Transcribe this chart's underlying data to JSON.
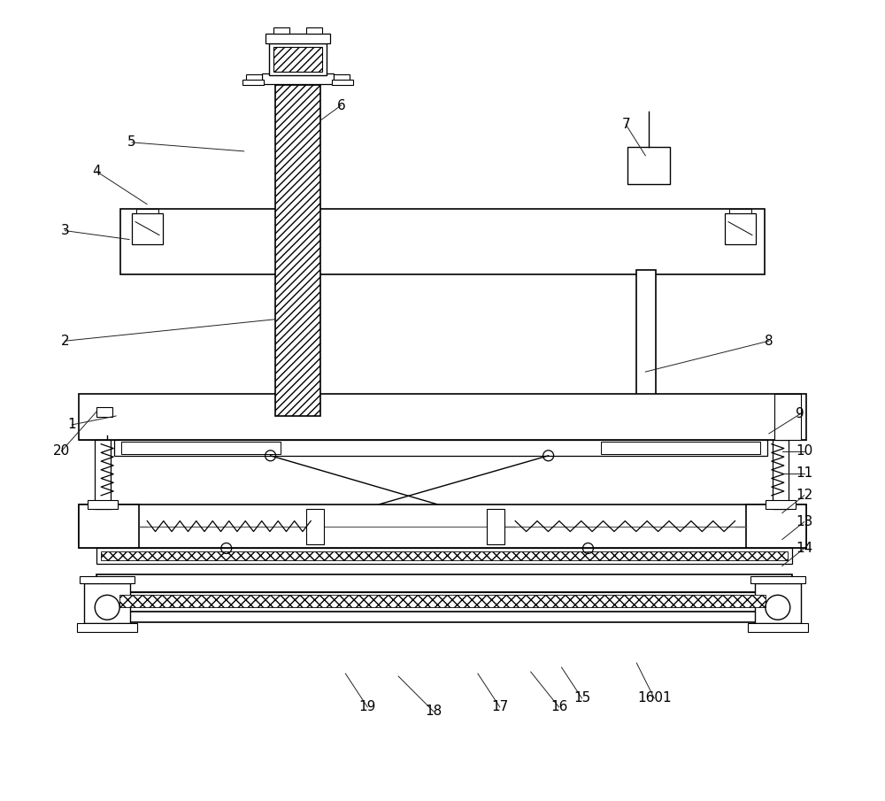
{
  "bg_color": "#ffffff",
  "line_color": "#000000",
  "fig_width": 10.0,
  "fig_height": 9.05,
  "lw": 1.2,
  "label_fs": 11
}
